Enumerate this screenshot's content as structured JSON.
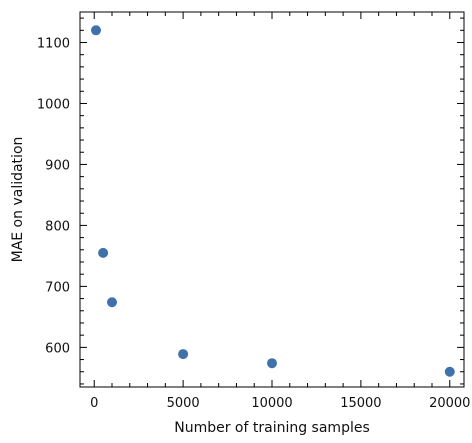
{
  "chart_data": {
    "type": "scatter",
    "title": "",
    "xlabel": "Number of training samples",
    "ylabel": "MAE on validation",
    "xlim": [
      -800,
      20800
    ],
    "ylim": [
      535,
      1150
    ],
    "x_ticks": [
      0,
      5000,
      10000,
      15000,
      20000
    ],
    "y_ticks": [
      600,
      700,
      800,
      900,
      1000,
      1100
    ],
    "x_minor_step": 1000,
    "y_minor_step": 20,
    "grid": false,
    "marker_color": "#3f72aa",
    "series": [
      {
        "points": [
          {
            "x": 100,
            "y": 1120
          },
          {
            "x": 500,
            "y": 755
          },
          {
            "x": 1000,
            "y": 674
          },
          {
            "x": 5000,
            "y": 589
          },
          {
            "x": 10000,
            "y": 574
          },
          {
            "x": 20000,
            "y": 560
          }
        ]
      }
    ]
  }
}
